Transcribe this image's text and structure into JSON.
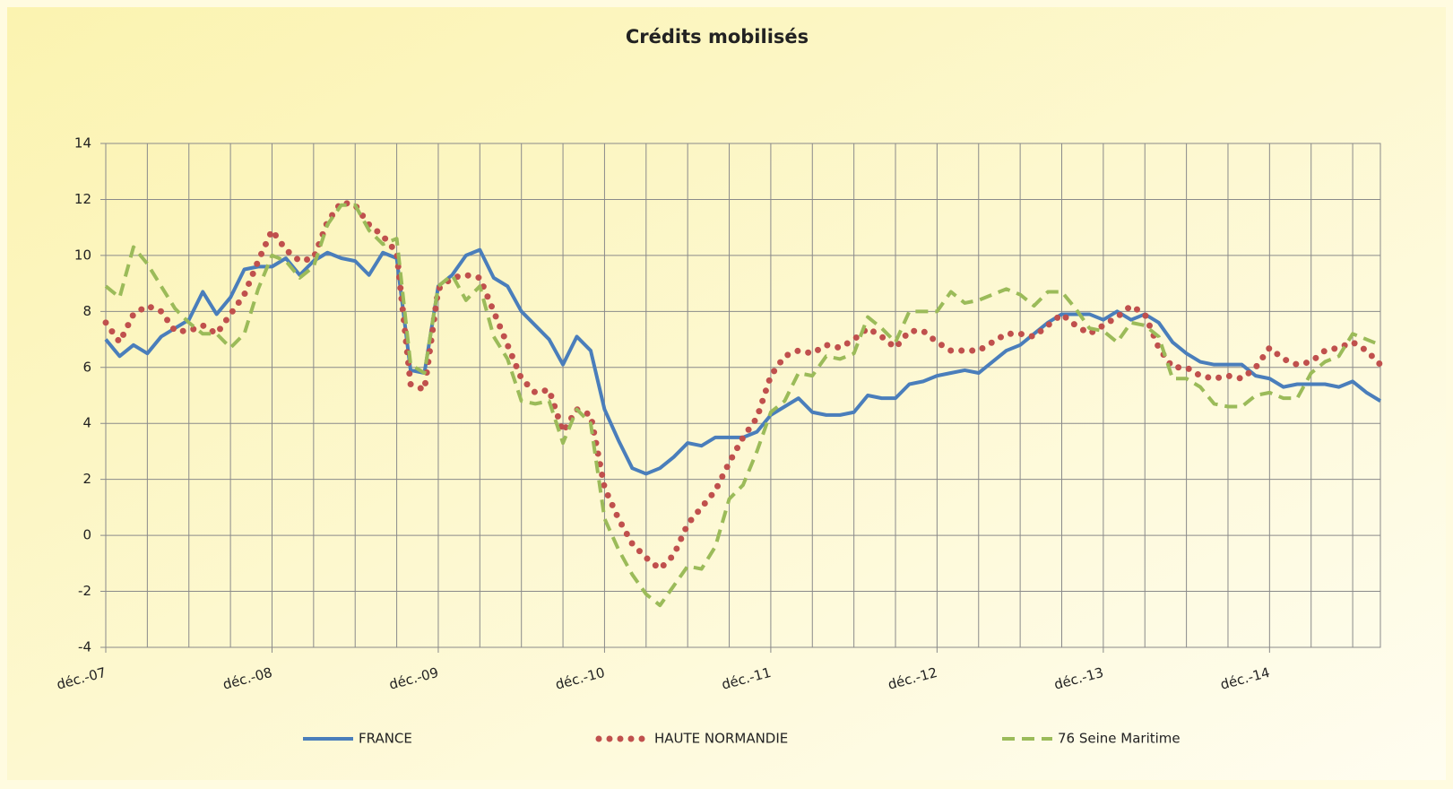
{
  "chart_data": {
    "type": "line",
    "title": "Crédits mobilisés",
    "categories": [
      "déc.-07",
      null,
      null,
      null,
      null,
      null,
      null,
      null,
      null,
      null,
      null,
      null,
      "déc.-08",
      null,
      null,
      null,
      null,
      null,
      null,
      null,
      null,
      null,
      null,
      null,
      "déc.-09",
      null,
      null,
      null,
      null,
      null,
      null,
      null,
      null,
      null,
      null,
      null,
      "déc.-10",
      null,
      null,
      null,
      null,
      null,
      null,
      null,
      null,
      null,
      null,
      null,
      "déc.-11",
      null,
      null,
      null,
      null,
      null,
      null,
      null,
      null,
      null,
      null,
      null,
      "déc.-12",
      null,
      null,
      null,
      null,
      null,
      null,
      null,
      null,
      null,
      null,
      null,
      "déc.-13",
      null,
      null,
      null,
      null,
      null,
      null,
      null,
      null,
      null,
      null,
      null,
      "déc.-14",
      null,
      null,
      null,
      null,
      null,
      null,
      null,
      null
    ],
    "series": [
      {
        "name": "FRANCE",
        "color": "#4a7ebb",
        "style": "solid",
        "values": [
          7.0,
          6.4,
          6.8,
          6.5,
          7.1,
          7.4,
          7.7,
          8.7,
          7.9,
          8.5,
          9.5,
          9.6,
          9.6,
          9.9,
          9.3,
          9.8,
          10.1,
          9.9,
          9.8,
          9.3,
          10.1,
          9.9,
          5.9,
          5.8,
          8.9,
          9.3,
          10.0,
          10.2,
          9.2,
          8.9,
          8.0,
          7.5,
          7.0,
          6.1,
          7.1,
          6.6,
          4.5,
          3.4,
          2.4,
          2.2,
          2.4,
          2.8,
          3.3,
          3.2,
          3.5,
          3.5,
          3.5,
          3.7,
          4.3,
          4.6,
          4.9,
          4.4,
          4.3,
          4.3,
          4.4,
          5.0,
          4.9,
          4.9,
          5.4,
          5.5,
          5.7,
          5.8,
          5.9,
          5.8,
          6.2,
          6.6,
          6.8,
          7.2,
          7.6,
          7.9,
          7.9,
          7.9,
          7.7,
          8.0,
          7.7,
          7.9,
          7.6,
          6.9,
          6.5,
          6.2,
          6.1,
          6.1,
          6.1,
          5.7,
          5.6,
          5.3,
          5.4,
          5.4,
          5.4,
          5.3,
          5.5,
          5.1,
          4.8
        ]
      },
      {
        "name": "HAUTE NORMANDIE",
        "color": "#c0504d",
        "style": "dotted",
        "values": [
          7.6,
          6.9,
          7.9,
          8.2,
          8.0,
          7.3,
          7.3,
          7.5,
          7.2,
          7.9,
          8.6,
          9.8,
          10.9,
          10.2,
          9.8,
          9.9,
          11.2,
          11.9,
          11.8,
          11.1,
          10.7,
          10.1,
          5.4,
          5.2,
          8.8,
          9.2,
          9.3,
          9.2,
          8.0,
          6.8,
          5.6,
          5.1,
          5.2,
          3.7,
          4.5,
          4.3,
          1.7,
          0.6,
          -0.3,
          -0.8,
          -1.2,
          -0.7,
          0.4,
          1.0,
          1.6,
          2.6,
          3.5,
          4.2,
          5.7,
          6.4,
          6.6,
          6.5,
          6.8,
          6.7,
          7.0,
          7.4,
          7.1,
          6.7,
          7.3,
          7.3,
          6.9,
          6.6,
          6.6,
          6.6,
          6.9,
          7.2,
          7.2,
          7.1,
          7.5,
          7.9,
          7.5,
          7.2,
          7.5,
          7.8,
          8.2,
          7.9,
          6.7,
          6.0,
          6.0,
          5.7,
          5.6,
          5.7,
          5.6,
          6.0,
          6.7,
          6.3,
          6.1,
          6.2,
          6.6,
          6.7,
          6.9,
          6.6,
          6.1
        ]
      },
      {
        "name": "76 Seine Maritime",
        "color": "#9bbb59",
        "style": "dashed",
        "values": [
          8.9,
          8.5,
          10.3,
          9.7,
          8.9,
          8.1,
          7.6,
          7.2,
          7.2,
          6.7,
          7.2,
          8.8,
          10.0,
          9.8,
          9.2,
          9.6,
          11.1,
          11.8,
          11.8,
          10.9,
          10.4,
          10.6,
          6.1,
          5.8,
          8.9,
          9.3,
          8.4,
          8.9,
          7.1,
          6.3,
          4.8,
          4.7,
          4.8,
          3.3,
          4.5,
          4.0,
          0.6,
          -0.5,
          -1.4,
          -2.1,
          -2.5,
          -1.8,
          -1.1,
          -1.2,
          -0.4,
          1.3,
          1.8,
          3.0,
          4.4,
          4.8,
          5.8,
          5.7,
          6.4,
          6.3,
          6.5,
          7.8,
          7.4,
          6.9,
          8.0,
          8.0,
          8.0,
          8.7,
          8.3,
          8.4,
          8.6,
          8.8,
          8.6,
          8.2,
          8.7,
          8.7,
          8.1,
          7.4,
          7.3,
          6.9,
          7.6,
          7.5,
          7.1,
          5.6,
          5.6,
          5.3,
          4.7,
          4.6,
          4.6,
          5.0,
          5.1,
          4.9,
          4.9,
          5.8,
          6.2,
          6.4,
          7.2,
          7.0,
          6.8
        ]
      }
    ],
    "ylim": [
      -4,
      14
    ],
    "yticks": [
      -4,
      -2,
      0,
      2,
      4,
      6,
      8,
      10,
      12,
      14
    ],
    "grid": true,
    "legend": "bottom"
  }
}
